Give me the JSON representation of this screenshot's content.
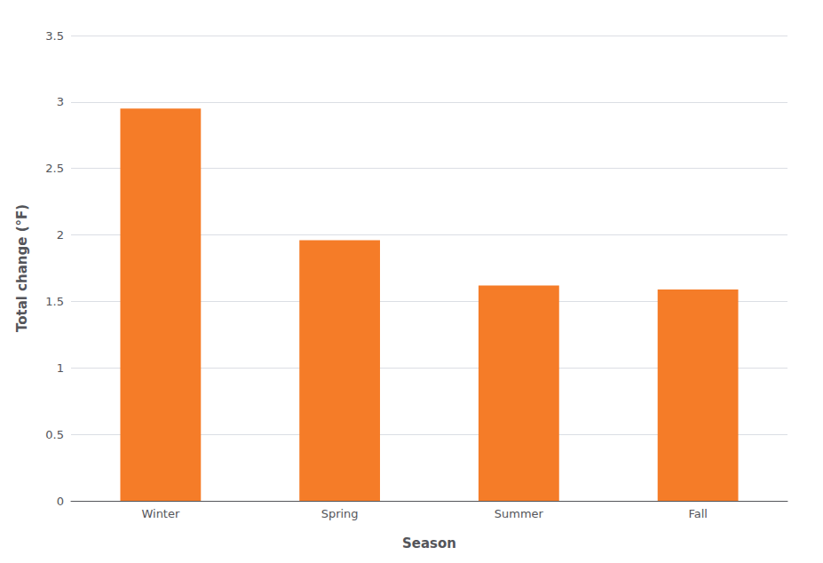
{
  "chart_data": {
    "type": "bar",
    "categories": [
      "Winter",
      "Spring",
      "Summer",
      "Fall"
    ],
    "values": [
      2.95,
      1.96,
      1.62,
      1.59
    ],
    "color": "#F57C28",
    "xlabel": "Season",
    "ylabel": "Total change (°F)",
    "ylim": [
      0,
      3.5
    ],
    "yticks": [
      0,
      0.5,
      1.0,
      1.5,
      2.0,
      2.5,
      3.0,
      3.5
    ],
    "grid": true
  }
}
